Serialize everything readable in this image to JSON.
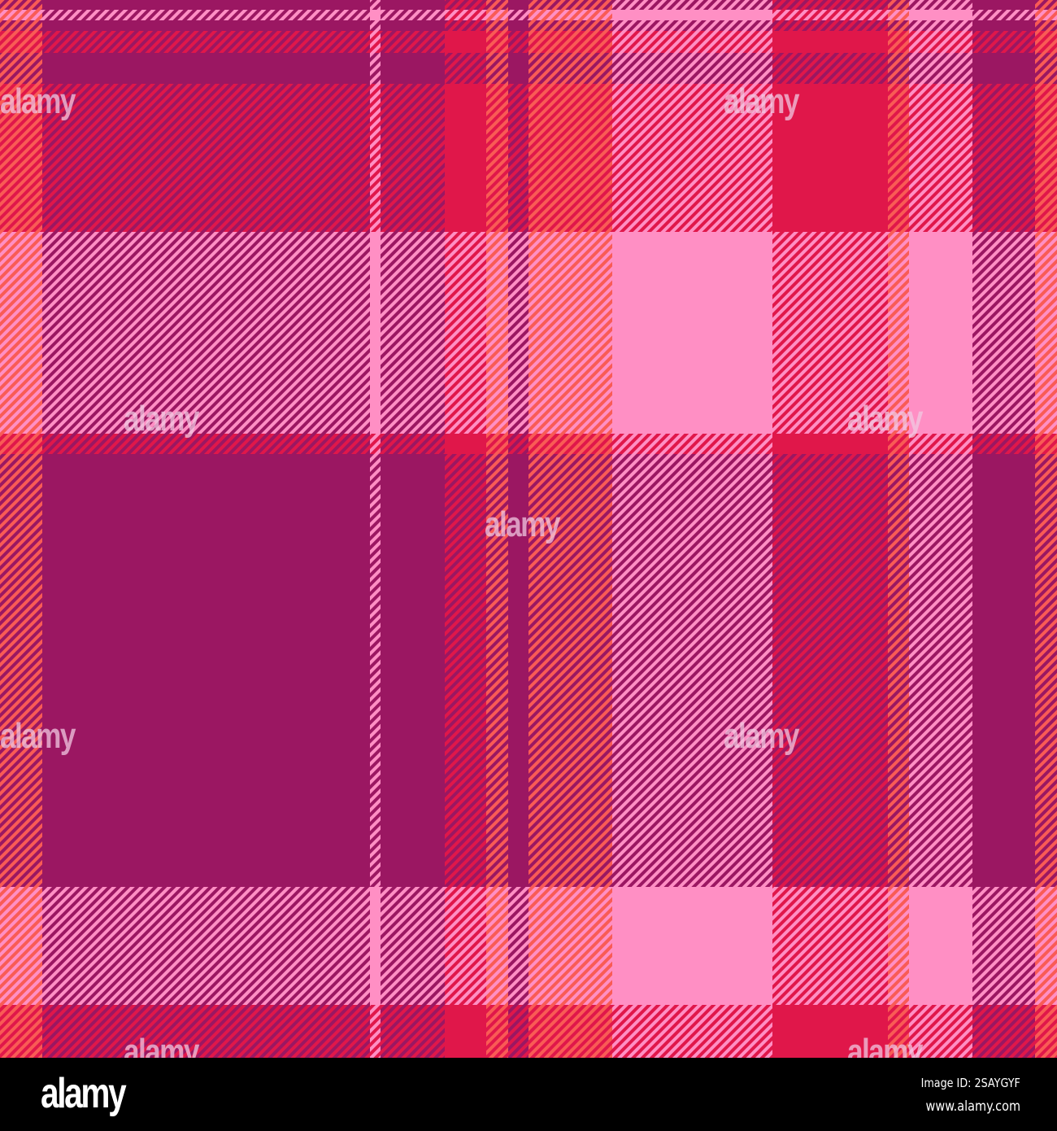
{
  "pattern": {
    "type": "tartan plaid",
    "palette": {
      "purple": "#9b1762",
      "crimson": "#e0174a",
      "coral": "#f95b55",
      "pink": "#ff8fc4"
    }
  },
  "watermark": "alamy",
  "footer": {
    "logo": "alamy",
    "image_id": "Image ID: 2SAYGYF",
    "website": "www.alamy.com"
  }
}
